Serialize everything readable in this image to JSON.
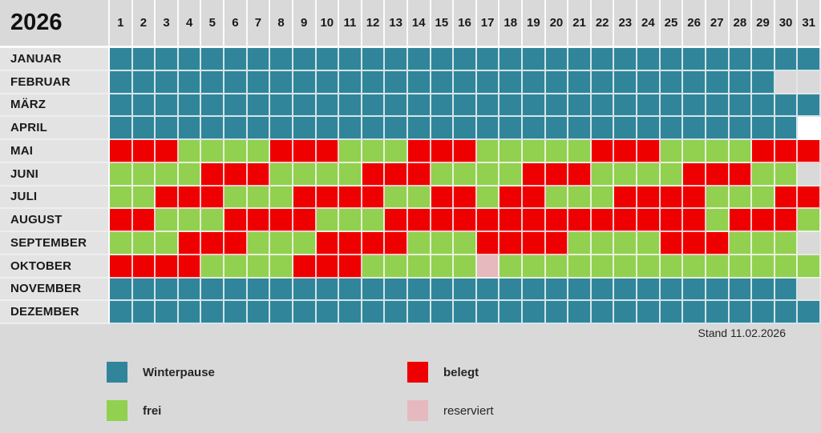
{
  "chart_data": {
    "type": "heatmap",
    "title": "2026",
    "x_labels": [
      1,
      2,
      3,
      4,
      5,
      6,
      7,
      8,
      9,
      10,
      11,
      12,
      13,
      14,
      15,
      16,
      17,
      18,
      19,
      20,
      21,
      22,
      23,
      24,
      25,
      26,
      27,
      28,
      29,
      30,
      31
    ],
    "status_codes": {
      "W": "Winterpause",
      "G": "frei",
      "R": "belegt",
      "P": "reserviert",
      "-": "kein Tag (außerhalb des Monats)",
      "X": "leer (weiß)"
    },
    "colors": {
      "W": "#31859b",
      "G": "#92d050",
      "R": "#ee0000",
      "P": "#e5b9bd",
      "-": "#d9d9d9",
      "X": "#ffffff"
    },
    "rows": [
      {
        "month": "JANUAR",
        "days": "WWWWWWWWWWWWWWWWWWWWWWWWWWWWWWW"
      },
      {
        "month": "FEBRUAR",
        "days": "WWWWWWWWWWWWWWWWWWWWWWWWWWWWW--"
      },
      {
        "month": "MÄRZ",
        "days": "WWWWWWWWWWWWWWWWWWWWWWWWWWWWWWW"
      },
      {
        "month": "APRIL",
        "days": "WWWWWWWWWWWWWWWWWWWWWWWWWWWWWWX"
      },
      {
        "month": "MAI",
        "days": "RRRGGGGRRRGGGRRRGGGGGRRRGGGGRRR"
      },
      {
        "month": "JUNI",
        "days": "GGGGRRRGGGGRRRGGGGRRRGGGGRRRGG-"
      },
      {
        "month": "JULI",
        "days": "GGRRRGGGRRRRGGRRGRRGGGRRRRGGGRR"
      },
      {
        "month": "AUGUST",
        "days": "RRGGGRRRRGGGRRRRRRRRRRRRRRGRRRG"
      },
      {
        "month": "SEPTEMBER",
        "days": "GGGRRRGGGRRRRGGGRRRRGGGGRRRGGG-"
      },
      {
        "month": "OKTOBER",
        "days": "RRRRGGGGRRRGGGGGPGGGGGGGGGGGGGG"
      },
      {
        "month": "NOVEMBER",
        "days": "WWWWWWWWWWWWWWWWWWWWWWWWWWWWWW-"
      },
      {
        "month": "DEZEMBER",
        "days": "WWWWWWWWWWWWWWWWWWWWWWWWWWWWWWW"
      }
    ],
    "legend": [
      {
        "label": "Winterpause",
        "code": "W"
      },
      {
        "label": "frei",
        "code": "G"
      },
      {
        "label": "belegt",
        "code": "R"
      },
      {
        "label": "reserviert",
        "code": "P"
      }
    ],
    "annotation": "Stand 11.02.2026"
  }
}
